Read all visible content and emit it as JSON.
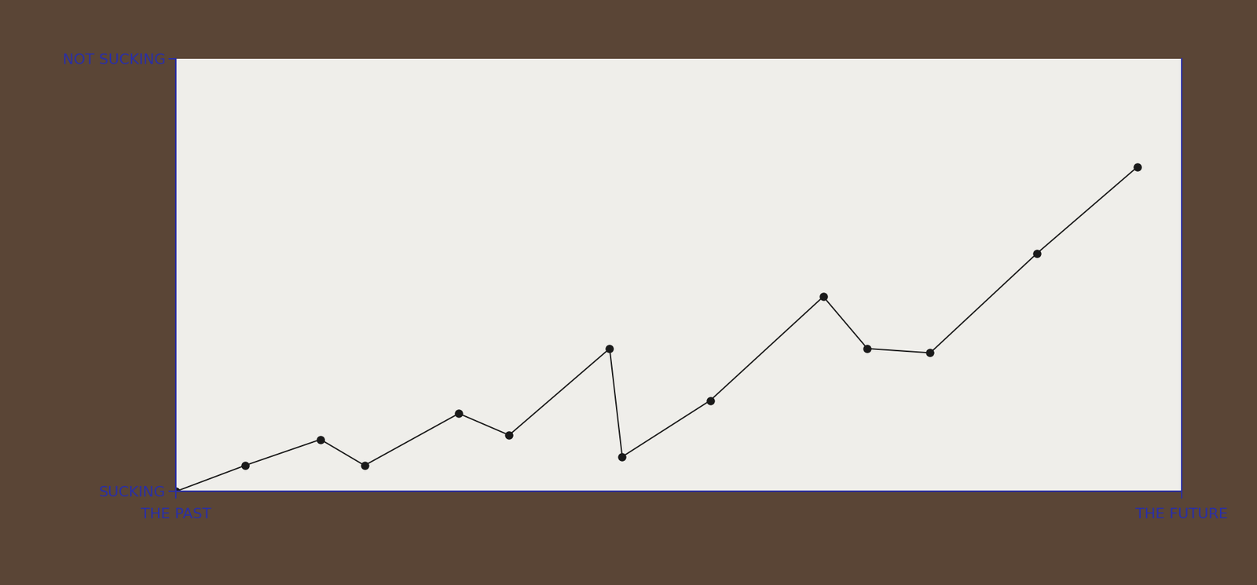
{
  "chart_data": {
    "type": "line",
    "x": [
      0,
      1.1,
      2.3,
      3.0,
      4.5,
      5.3,
      6.9,
      7.1,
      8.5,
      10.3,
      11.0,
      12.0,
      13.7,
      15.3
    ],
    "values": [
      0,
      0.6,
      1.2,
      0.6,
      1.8,
      1.3,
      3.3,
      0.8,
      2.1,
      4.5,
      3.3,
      3.2,
      5.5,
      7.5
    ],
    "color": "#1a1a1a",
    "marker": "o",
    "line_style": "solid",
    "xlim": [
      0,
      16
    ],
    "ylim": [
      0,
      10
    ],
    "xticks": [
      {
        "value": 0,
        "label": "THE PAST"
      },
      {
        "value": 16,
        "label": "THE FUTURE"
      }
    ],
    "yticks": [
      {
        "value": 0,
        "label": "SUCKING"
      },
      {
        "value": 10,
        "label": "NOT SUCKING"
      }
    ],
    "grid": false
  }
}
